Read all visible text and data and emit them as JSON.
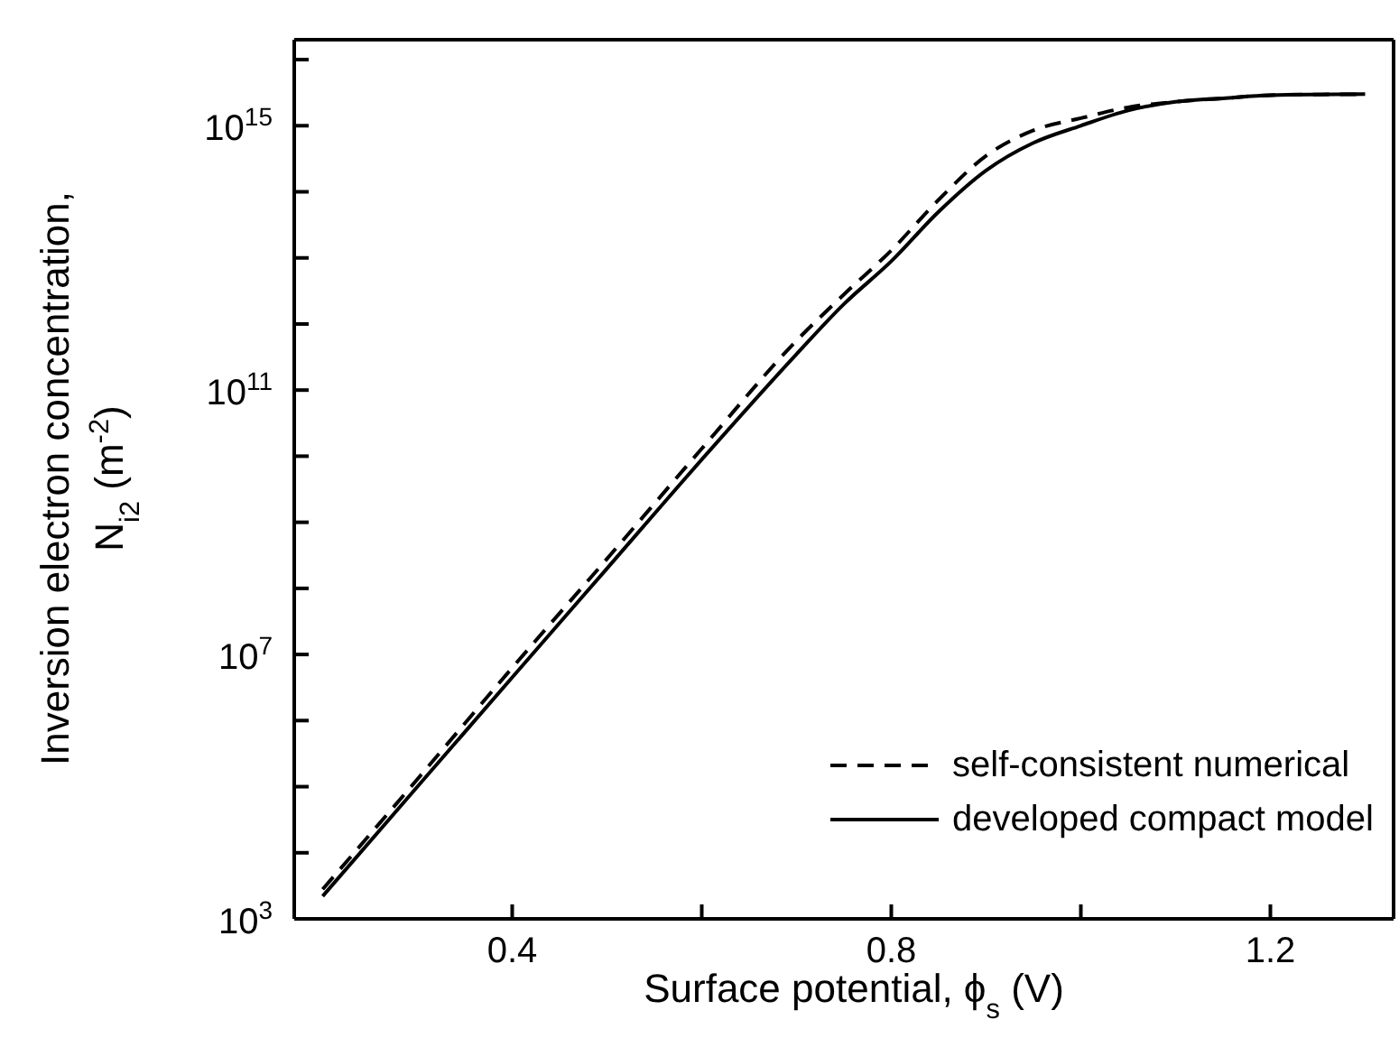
{
  "chart_data": {
    "type": "line",
    "xlabel": "Surface potential, ϕ$_{s}$ (V)",
    "ylabel": "Inversion electron concentration,\nN$_{i2}$ (m$^{-2}$)",
    "log": "y",
    "legend": "bottom right",
    "marker": "none",
    "x": [
      0.2,
      0.3,
      0.4,
      0.5,
      0.6,
      0.7,
      0.75,
      0.8,
      0.85,
      0.9,
      0.95,
      1.0,
      1.05,
      1.1,
      1.15,
      1.2,
      1.3
    ],
    "series": [
      {
        "name": "self-consistent numerical",
        "color": "#000000",
        "line_style": "dashed",
        "values": [
          2800.0,
          130000.0,
          6300000.0,
          280000000.0,
          13000000000.0,
          560000000000.0,
          2800000000000.0,
          13000000000000.0,
          76000000000000.0,
          350000000000000.0,
          850000000000000.0,
          1300000000000000.0,
          1900000000000000.0,
          2300000000000000.0,
          2600000000000000.0,
          2900000000000000.0,
          3000000000000000.0
        ]
      },
      {
        "name": "developed compact model",
        "color": "#000000",
        "line_style": "solid",
        "values": [
          2200.0,
          100000.0,
          4500000.0,
          200000000.0,
          8900000000.0,
          350000000000.0,
          2000000000000.0,
          8900000000000.0,
          50000000000000.0,
          210000000000000.0,
          550000000000000.0,
          1000000000000000.0,
          1700000000000000.0,
          2300000000000000.0,
          2600000000000000.0,
          2900000000000000.0,
          3000000000000000.0
        ]
      }
    ],
    "xlim": [
      0.17,
      1.33
    ],
    "xticks": [
      0.4,
      {
        "value": 0.6,
        "label": null
      },
      0.8,
      {
        "value": 1.0,
        "label": null
      },
      1.2
    ],
    "ylim": [
      1000.0,
      2e+16
    ],
    "yticks": [
      {
        "value": 1000.0,
        "label": "10$^{3}$"
      },
      {
        "value": 10000.0,
        "label": null
      },
      {
        "value": 100000.0,
        "label": null
      },
      {
        "value": 1000000.0,
        "label": null
      },
      {
        "value": 10000000.0,
        "label": "10$^{7}$"
      },
      {
        "value": 100000000.0,
        "label": null
      },
      {
        "value": 1000000000.0,
        "label": null
      },
      {
        "value": 10000000000.0,
        "label": null
      },
      {
        "value": 100000000000.0,
        "label": "10$^{11}$"
      },
      {
        "value": 1000000000000.0,
        "label": null
      },
      {
        "value": 10000000000000.0,
        "label": null
      },
      {
        "value": 100000000000000.0,
        "label": null
      },
      {
        "value": 1000000000000000.0,
        "label": "10$^{15}$"
      },
      {
        "value": 1e+16,
        "label": null
      }
    ]
  }
}
